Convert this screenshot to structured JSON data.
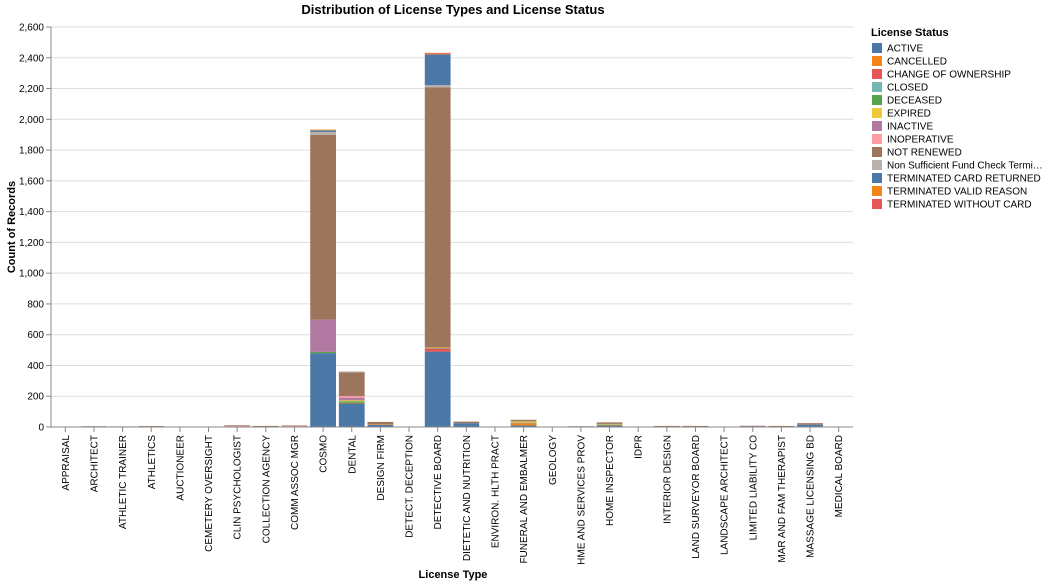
{
  "chart_data": {
    "type": "bar",
    "stacked": true,
    "title": "Distribution of License Types and License Status",
    "xlabel": "License Type",
    "ylabel": "Count of Records",
    "ylim": [
      0,
      2600
    ],
    "yticks": [
      0,
      200,
      400,
      600,
      800,
      1000,
      1200,
      1400,
      1600,
      1800,
      2000,
      2200,
      2400,
      2600
    ],
    "grid": true,
    "legend": {
      "title": "License Status",
      "placement": "right"
    },
    "categories": [
      "APPRAISAL",
      "ARCHITECT",
      "ATHLETIC TRAINER",
      "ATHLETICS",
      "AUCTIONEER",
      "CEMETERY OVERSIGHT",
      "CLIN PSYCHOLOGIST",
      "COLLECTION AGENCY",
      "COMM ASSOC MGR",
      "COSMO",
      "DENTAL",
      "DESIGN FIRM",
      "DETECT. DECEPTION",
      "DETECTIVE BOARD",
      "DIETETIC AND NUTRITION",
      "ENVIRON. HLTH PRACT",
      "FUNERAL AND EMBALMER",
      "GEOLOGY",
      "HME AND SERVICES PROV",
      "HOME INSPECTOR",
      "IDPR",
      "INTERIOR DESIGN",
      "LAND SURVEYOR BOARD",
      "LANDSCAPE ARCHITECT",
      "LIMITED LIABILITY CO",
      "MAR AND FAM THERAPIST",
      "MASSAGE LICENSING BD",
      "MEDICAL BOARD"
    ],
    "series": [
      {
        "name": "ACTIVE",
        "color": "#4c78a8",
        "values": [
          2,
          3,
          2,
          2,
          1,
          1,
          3,
          3,
          6,
          480,
          155,
          15,
          0,
          490,
          25,
          0,
          10,
          0,
          3,
          10,
          1,
          4,
          2,
          2,
          5,
          3,
          15,
          2
        ]
      },
      {
        "name": "CANCELLED",
        "color": "#f58518",
        "values": [
          0,
          0,
          0,
          0,
          0,
          0,
          1,
          0,
          0,
          0,
          2,
          3,
          0,
          0,
          0,
          0,
          15,
          0,
          0,
          5,
          0,
          0,
          1,
          0,
          0,
          0,
          0,
          0
        ]
      },
      {
        "name": "CHANGE OF OWNERSHIP",
        "color": "#e45756",
        "values": [
          0,
          0,
          0,
          0,
          0,
          0,
          0,
          0,
          0,
          0,
          0,
          0,
          0,
          20,
          0,
          0,
          2,
          0,
          0,
          0,
          0,
          0,
          0,
          0,
          0,
          0,
          0,
          0
        ]
      },
      {
        "name": "CLOSED",
        "color": "#72b7b2",
        "values": [
          0,
          0,
          0,
          0,
          0,
          0,
          0,
          0,
          0,
          0,
          0,
          0,
          0,
          5,
          0,
          0,
          1,
          0,
          0,
          2,
          0,
          0,
          0,
          0,
          0,
          0,
          0,
          0
        ]
      },
      {
        "name": "DECEASED",
        "color": "#54a24b",
        "values": [
          0,
          0,
          0,
          0,
          0,
          0,
          0,
          0,
          0,
          8,
          10,
          0,
          0,
          0,
          0,
          0,
          0,
          0,
          0,
          0,
          0,
          0,
          0,
          0,
          0,
          0,
          0,
          0
        ]
      },
      {
        "name": "EXPIRED",
        "color": "#eeca3b",
        "values": [
          0,
          0,
          0,
          0,
          0,
          0,
          1,
          0,
          0,
          0,
          6,
          0,
          0,
          2,
          0,
          0,
          8,
          0,
          0,
          3,
          0,
          0,
          1,
          0,
          0,
          0,
          0,
          0
        ]
      },
      {
        "name": "INACTIVE",
        "color": "#b279a2",
        "values": [
          0,
          0,
          0,
          0,
          0,
          0,
          0,
          0,
          0,
          210,
          18,
          0,
          0,
          0,
          0,
          0,
          0,
          0,
          0,
          0,
          0,
          0,
          0,
          0,
          0,
          0,
          0,
          0
        ]
      },
      {
        "name": "INOPERATIVE",
        "color": "#ff9da6",
        "values": [
          0,
          0,
          0,
          0,
          0,
          0,
          1,
          2,
          1,
          0,
          10,
          0,
          0,
          0,
          0,
          0,
          0,
          0,
          0,
          0,
          0,
          0,
          0,
          0,
          0,
          0,
          0,
          0
        ]
      },
      {
        "name": "NOT RENEWED",
        "color": "#9d755d",
        "values": [
          0,
          2,
          2,
          4,
          0,
          0,
          5,
          2,
          3,
          1200,
          155,
          15,
          0,
          1690,
          10,
          3,
          10,
          2,
          2,
          10,
          1,
          3,
          3,
          1,
          3,
          4,
          10,
          1
        ]
      },
      {
        "name": "Non Sufficient Fund Check Termi…",
        "color": "#bab0ac",
        "values": [
          0,
          0,
          0,
          0,
          0,
          0,
          0,
          0,
          0,
          20,
          5,
          0,
          0,
          15,
          0,
          0,
          2,
          0,
          0,
          0,
          0,
          0,
          0,
          0,
          0,
          0,
          0,
          0
        ]
      },
      {
        "name": "TERMINATED CARD RETURNED",
        "color": "#4c78a8",
        "values": [
          0,
          0,
          0,
          0,
          0,
          0,
          0,
          0,
          0,
          10,
          0,
          0,
          0,
          200,
          0,
          0,
          0,
          0,
          0,
          0,
          0,
          0,
          0,
          0,
          0,
          0,
          0,
          0
        ]
      },
      {
        "name": "TERMINATED VALID REASON",
        "color": "#f58518",
        "values": [
          0,
          0,
          0,
          0,
          0,
          0,
          0,
          0,
          0,
          5,
          0,
          0,
          0,
          5,
          0,
          0,
          0,
          0,
          0,
          0,
          0,
          0,
          0,
          0,
          0,
          0,
          0,
          0
        ]
      },
      {
        "name": "TERMINATED WITHOUT CARD",
        "color": "#e45756",
        "values": [
          0,
          0,
          0,
          0,
          0,
          0,
          0,
          0,
          0,
          0,
          0,
          0,
          0,
          5,
          0,
          0,
          0,
          0,
          0,
          0,
          0,
          0,
          0,
          0,
          0,
          0,
          0,
          0
        ]
      }
    ]
  }
}
